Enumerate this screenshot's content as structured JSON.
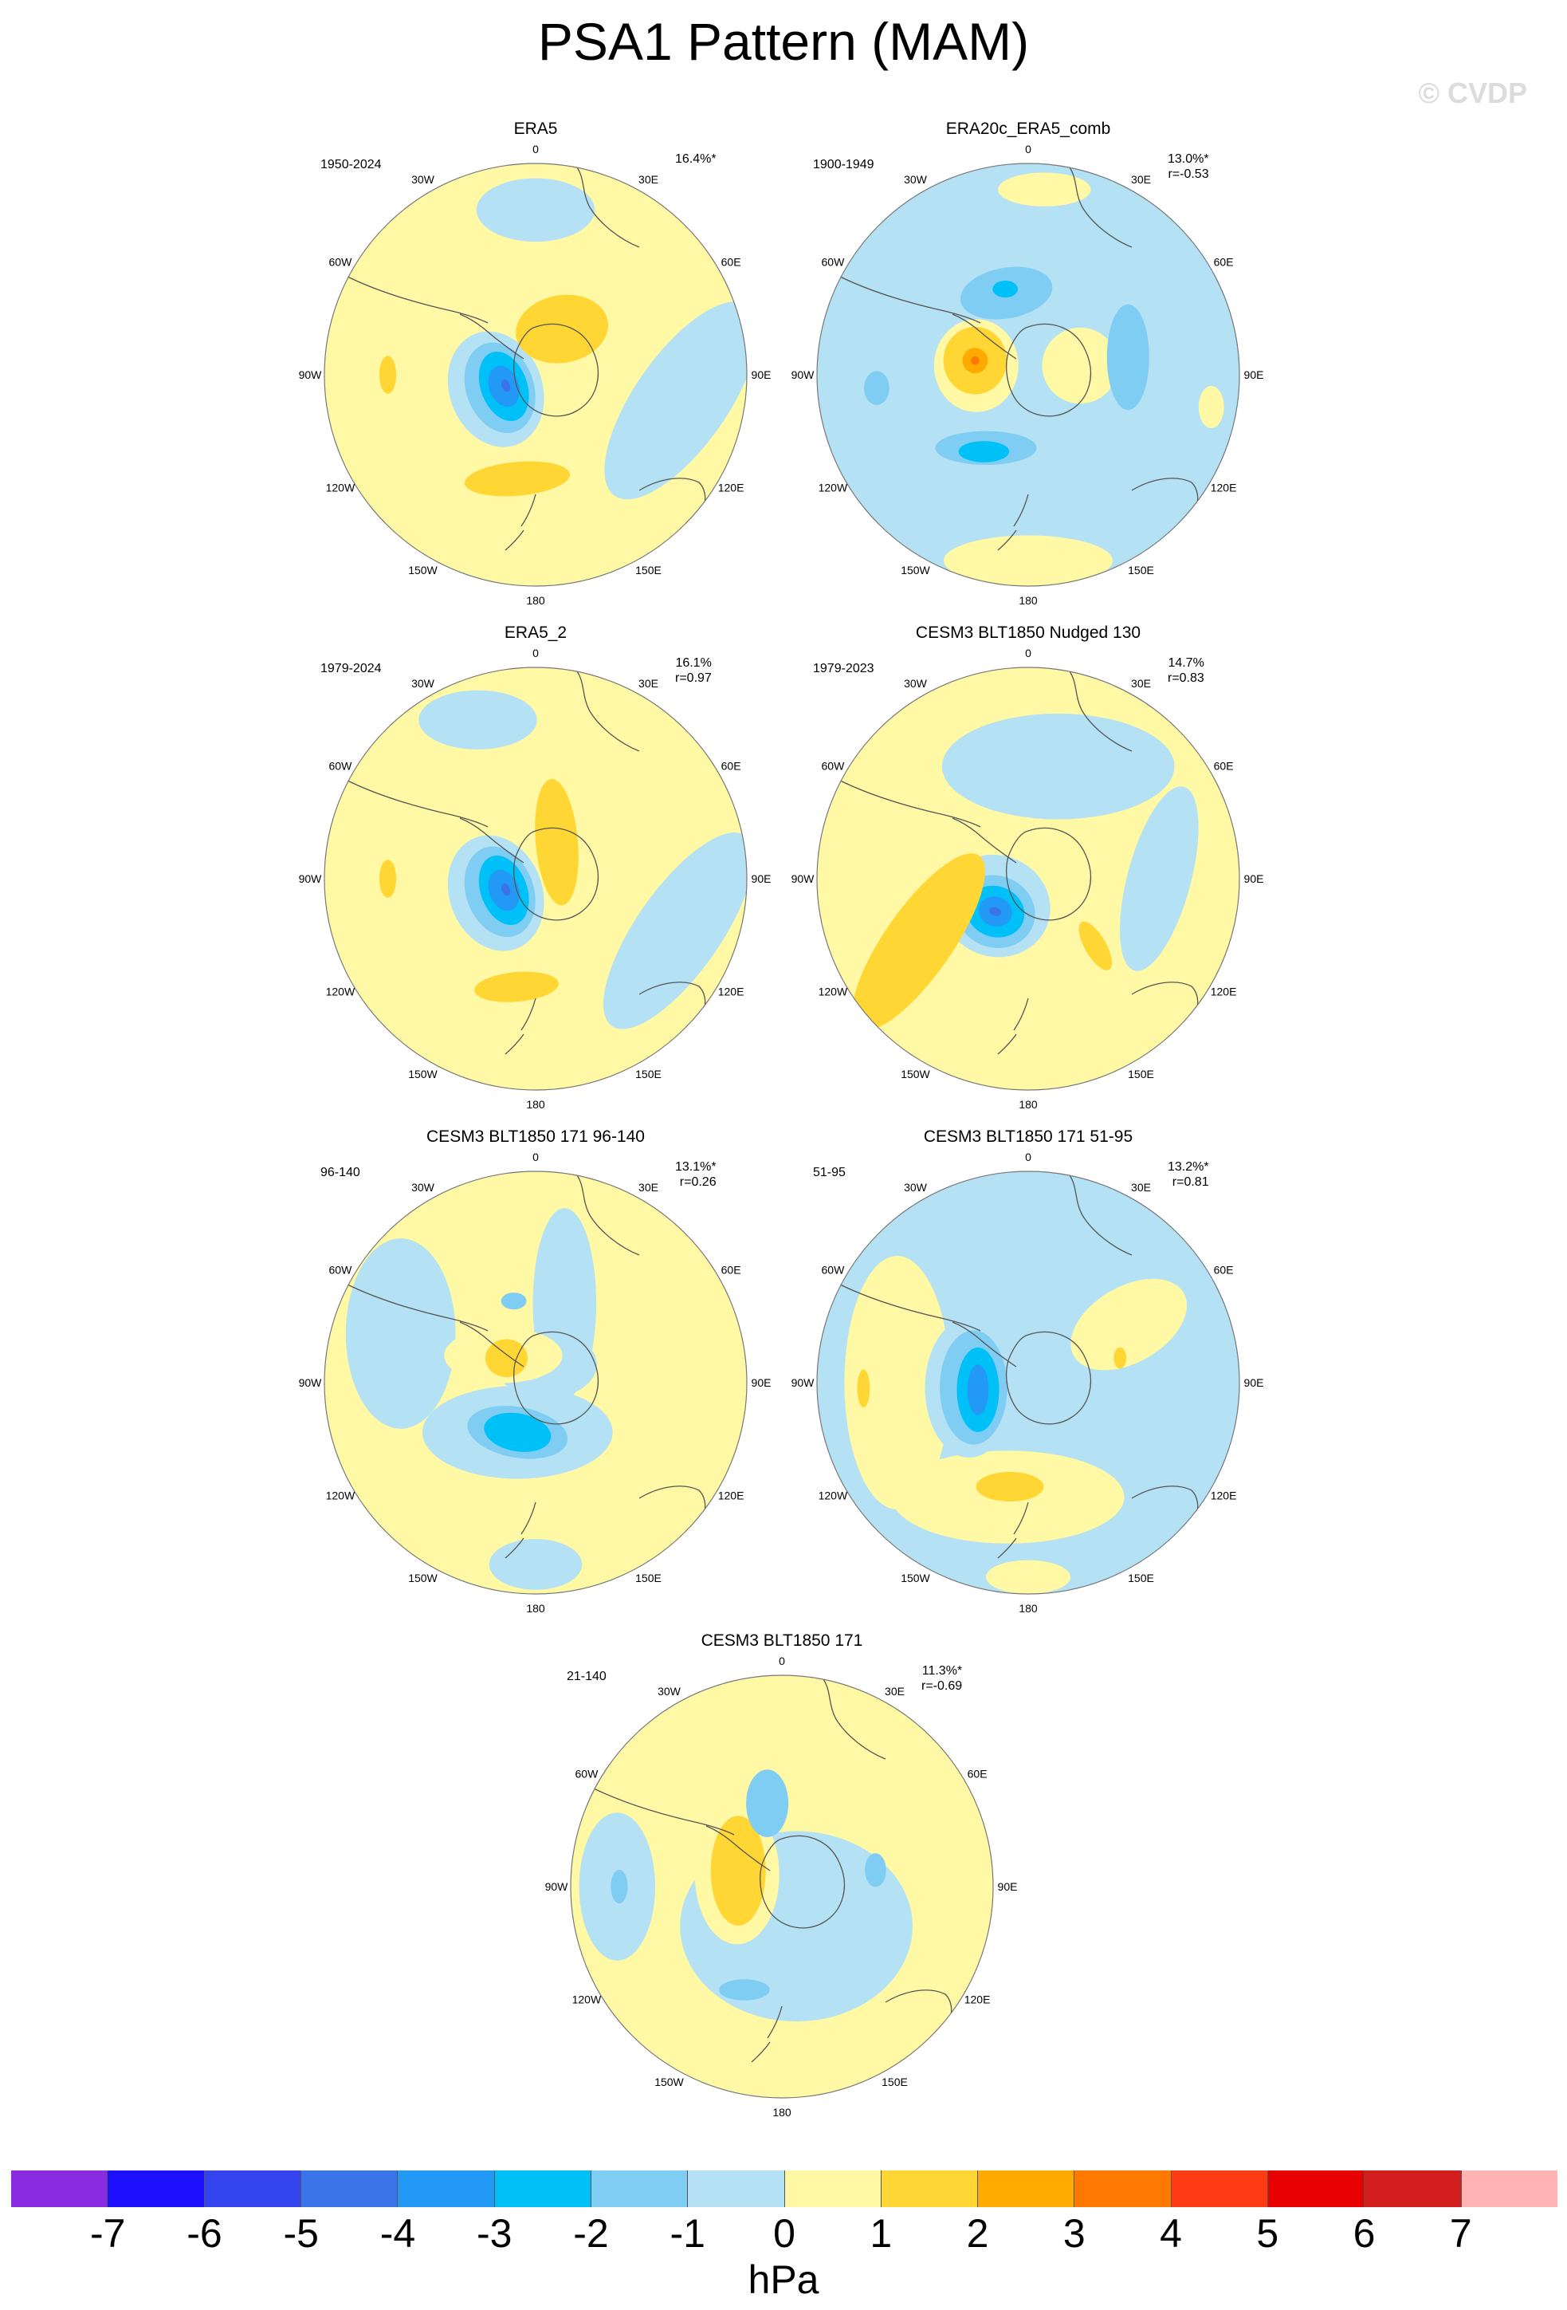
{
  "title": "PSA1 Pattern (MAM)",
  "watermark": "© CVDP",
  "longitude_labels": [
    "0",
    "30E",
    "60E",
    "90E",
    "120E",
    "150E",
    "180",
    "150W",
    "120W",
    "90W",
    "60W",
    "30W"
  ],
  "panels": [
    {
      "title": "ERA5",
      "years": "1950-2024",
      "stats": "16.4%*",
      "background": "yellow",
      "features": [
        {
          "level": -1,
          "lon": 250,
          "r": 0.2,
          "rx": 0.22,
          "ry": 0.28,
          "rot": -20
        },
        {
          "level": -2,
          "lon": 250,
          "r": 0.18,
          "rx": 0.16,
          "ry": 0.22,
          "rot": -20
        },
        {
          "level": -3,
          "lon": 250,
          "r": 0.16,
          "rx": 0.11,
          "ry": 0.17,
          "rot": -20
        },
        {
          "level": -4,
          "lon": 250,
          "r": 0.16,
          "rx": 0.07,
          "ry": 0.1,
          "rot": -20
        },
        {
          "level": -5,
          "lon": 250,
          "r": 0.15,
          "rx": 0.02,
          "ry": 0.03,
          "rot": -20
        },
        {
          "level": -1,
          "lon": 100,
          "r": 0.7,
          "rx": 0.22,
          "ry": 0.55,
          "rot": 35
        },
        {
          "level": -1,
          "lon": 0,
          "r": 0.78,
          "rx": 0.28,
          "ry": 0.15,
          "rot": 0
        },
        {
          "level": 2,
          "lon": 30,
          "r": 0.25,
          "rx": 0.22,
          "ry": 0.16,
          "rot": -10
        },
        {
          "level": 2,
          "lon": 190,
          "r": 0.5,
          "rx": 0.25,
          "ry": 0.08,
          "rot": -5
        },
        {
          "level": 2,
          "lon": 270,
          "r": 0.7,
          "rx": 0.04,
          "ry": 0.09,
          "rot": 0
        }
      ]
    },
    {
      "title": "ERA20c_ERA5_comb",
      "years": "1900-1949",
      "stats": "13.0%*\nr=-0.53",
      "background": "blue",
      "features": [
        {
          "level": 0,
          "lon": 280,
          "r": 0.25,
          "rx": 0.2,
          "ry": 0.22,
          "rot": 0
        },
        {
          "level": 1,
          "lon": 285,
          "r": 0.26,
          "rx": 0.15,
          "ry": 0.16,
          "rot": 0
        },
        {
          "level": 2,
          "lon": 285,
          "r": 0.26,
          "rx": 0.11,
          "ry": 0.12,
          "rot": 0
        },
        {
          "level": 3,
          "lon": 285,
          "r": 0.26,
          "rx": 0.06,
          "ry": 0.06,
          "rot": 0
        },
        {
          "level": 4,
          "lon": 285,
          "r": 0.26,
          "rx": 0.02,
          "ry": 0.02,
          "rot": 0
        },
        {
          "level": 0,
          "lon": 80,
          "r": 0.25,
          "rx": 0.18,
          "ry": 0.18,
          "rot": 0
        },
        {
          "level": -2,
          "lon": 345,
          "r": 0.4,
          "rx": 0.22,
          "ry": 0.12,
          "rot": -10
        },
        {
          "level": -3,
          "lon": 345,
          "r": 0.42,
          "rx": 0.06,
          "ry": 0.04,
          "rot": 0
        },
        {
          "level": -2,
          "lon": 80,
          "r": 0.48,
          "rx": 0.1,
          "ry": 0.25,
          "rot": 0
        },
        {
          "level": -2,
          "lon": 210,
          "r": 0.4,
          "rx": 0.24,
          "ry": 0.08,
          "rot": 0
        },
        {
          "level": -3,
          "lon": 210,
          "r": 0.42,
          "rx": 0.12,
          "ry": 0.05,
          "rot": 0
        },
        {
          "level": -2,
          "lon": 265,
          "r": 0.72,
          "rx": 0.06,
          "ry": 0.08,
          "rot": 0
        },
        {
          "level": 0,
          "lon": 180,
          "r": 0.88,
          "rx": 0.4,
          "ry": 0.12,
          "rot": 0
        },
        {
          "level": 0,
          "lon": 5,
          "r": 0.88,
          "rx": 0.22,
          "ry": 0.08,
          "rot": 0
        },
        {
          "level": 0,
          "lon": 100,
          "r": 0.88,
          "rx": 0.06,
          "ry": 0.1,
          "rot": 0
        }
      ]
    },
    {
      "title": "ERA5_2",
      "years": "1979-2024",
      "stats": "16.1%\nr=0.97",
      "background": "yellow",
      "features": [
        {
          "level": -1,
          "lon": 250,
          "r": 0.2,
          "rx": 0.22,
          "ry": 0.28,
          "rot": -20
        },
        {
          "level": -2,
          "lon": 250,
          "r": 0.18,
          "rx": 0.16,
          "ry": 0.22,
          "rot": -20
        },
        {
          "level": -3,
          "lon": 250,
          "r": 0.16,
          "rx": 0.11,
          "ry": 0.17,
          "rot": -20
        },
        {
          "level": -4,
          "lon": 250,
          "r": 0.16,
          "rx": 0.07,
          "ry": 0.1,
          "rot": -20
        },
        {
          "level": -5,
          "lon": 250,
          "r": 0.15,
          "rx": 0.02,
          "ry": 0.03,
          "rot": -20
        },
        {
          "level": -1,
          "lon": 110,
          "r": 0.72,
          "rx": 0.2,
          "ry": 0.55,
          "rot": 35
        },
        {
          "level": -1,
          "lon": 340,
          "r": 0.8,
          "rx": 0.28,
          "ry": 0.14,
          "rot": 0
        },
        {
          "level": 2,
          "lon": 30,
          "r": 0.2,
          "rx": 0.1,
          "ry": 0.3,
          "rot": -5
        },
        {
          "level": 2,
          "lon": 190,
          "r": 0.52,
          "rx": 0.2,
          "ry": 0.07,
          "rot": -5
        },
        {
          "level": 2,
          "lon": 270,
          "r": 0.7,
          "rx": 0.04,
          "ry": 0.09,
          "rot": 0
        }
      ]
    },
    {
      "title": "CESM3 BLT1850 Nudged 130",
      "years": "1979-2023",
      "stats": "14.7%\nr=0.83",
      "background": "yellow",
      "features": [
        {
          "level": -1,
          "lon": 230,
          "r": 0.2,
          "rx": 0.26,
          "ry": 0.24,
          "rot": 20
        },
        {
          "level": -2,
          "lon": 225,
          "r": 0.22,
          "rx": 0.19,
          "ry": 0.17,
          "rot": 20
        },
        {
          "level": -3,
          "lon": 225,
          "r": 0.22,
          "rx": 0.14,
          "ry": 0.12,
          "rot": 20
        },
        {
          "level": -4,
          "lon": 225,
          "r": 0.22,
          "rx": 0.08,
          "ry": 0.07,
          "rot": 20
        },
        {
          "level": -5,
          "lon": 225,
          "r": 0.22,
          "rx": 0.03,
          "ry": 0.02,
          "rot": 20
        },
        {
          "level": -1,
          "lon": 15,
          "r": 0.55,
          "rx": 0.55,
          "ry": 0.25,
          "rot": 0
        },
        {
          "level": -1,
          "lon": 90,
          "r": 0.62,
          "rx": 0.15,
          "ry": 0.45,
          "rot": 15
        },
        {
          "level": 2,
          "lon": 240,
          "r": 0.6,
          "rx": 0.16,
          "ry": 0.5,
          "rot": 35
        },
        {
          "level": 2,
          "lon": 135,
          "r": 0.45,
          "rx": 0.05,
          "ry": 0.13,
          "rot": -30
        }
      ]
    },
    {
      "title": "CESM3 BLT1850 171 96-140",
      "years": "96-140",
      "stats": "13.1%*\nr=0.26",
      "background": "yellow",
      "features": [
        {
          "level": -1,
          "lon": 290,
          "r": 0.68,
          "rx": 0.26,
          "ry": 0.45,
          "rot": 0
        },
        {
          "level": -1,
          "lon": 200,
          "r": 0.25,
          "rx": 0.45,
          "ry": 0.22,
          "rot": 0
        },
        {
          "level": -1,
          "lon": 20,
          "r": 0.4,
          "rx": 0.15,
          "ry": 0.45,
          "rot": 0
        },
        {
          "level": -1,
          "lon": 30,
          "r": 0.1,
          "rx": 0.24,
          "ry": 0.16,
          "rot": 0
        },
        {
          "level": -2,
          "lon": 200,
          "r": 0.25,
          "rx": 0.24,
          "ry": 0.12,
          "rot": 10
        },
        {
          "level": -3,
          "lon": 200,
          "r": 0.25,
          "rx": 0.16,
          "ry": 0.09,
          "rot": 10
        },
        {
          "level": 0,
          "lon": 310,
          "r": 0.2,
          "rx": 0.28,
          "ry": 0.13,
          "rot": 0
        },
        {
          "level": 1,
          "lon": 310,
          "r": 0.18,
          "rx": 0.1,
          "ry": 0.09,
          "rot": 0
        },
        {
          "level": 2,
          "lon": 300,
          "r": 0.18,
          "rx": 0.04,
          "ry": 0.05,
          "rot": 0
        },
        {
          "level": -2,
          "lon": 345,
          "r": 0.4,
          "rx": 0.06,
          "ry": 0.04,
          "rot": 0
        },
        {
          "level": -1,
          "lon": 180,
          "r": 0.86,
          "rx": 0.22,
          "ry": 0.12,
          "rot": 0
        }
      ]
    },
    {
      "title": "CESM3 BLT1850 171 51-95",
      "years": "51-95",
      "stats": "13.2%*\nr=0.81",
      "background": "blue",
      "features": [
        {
          "level": 0,
          "lon": 270,
          "r": 0.62,
          "rx": 0.25,
          "ry": 0.6,
          "rot": 0
        },
        {
          "level": 0,
          "lon": 60,
          "r": 0.55,
          "rx": 0.3,
          "ry": 0.18,
          "rot": -30
        },
        {
          "level": 0,
          "lon": 190,
          "r": 0.55,
          "rx": 0.55,
          "ry": 0.22,
          "rot": 0
        },
        {
          "level": 0,
          "lon": 180,
          "r": 0.92,
          "rx": 0.2,
          "ry": 0.08,
          "rot": 0
        },
        {
          "level": -1,
          "lon": 265,
          "r": 0.28,
          "rx": 0.21,
          "ry": 0.33,
          "rot": 0
        },
        {
          "level": -2,
          "lon": 265,
          "r": 0.26,
          "rx": 0.16,
          "ry": 0.27,
          "rot": 0
        },
        {
          "level": -3,
          "lon": 262,
          "r": 0.24,
          "rx": 0.1,
          "ry": 0.2,
          "rot": 0
        },
        {
          "level": -4,
          "lon": 262,
          "r": 0.24,
          "rx": 0.05,
          "ry": 0.12,
          "rot": 0
        },
        {
          "level": 2,
          "lon": 190,
          "r": 0.5,
          "rx": 0.16,
          "ry": 0.07,
          "rot": 0
        },
        {
          "level": 2,
          "lon": 75,
          "r": 0.45,
          "rx": 0.03,
          "ry": 0.05,
          "rot": 0
        },
        {
          "level": 2,
          "lon": 268,
          "r": 0.78,
          "rx": 0.03,
          "ry": 0.09,
          "rot": 0
        }
      ]
    },
    {
      "title": "CESM3 BLT1850 171",
      "years": "21-140",
      "stats": "11.3%*\nr=-0.69",
      "background": "yellow",
      "features": [
        {
          "level": -1,
          "lon": 160,
          "r": 0.2,
          "rx": 0.55,
          "ry": 0.45,
          "rot": 0
        },
        {
          "level": -1,
          "lon": 270,
          "r": 0.78,
          "rx": 0.18,
          "ry": 0.35,
          "rot": 0
        },
        {
          "level": 0,
          "lon": 285,
          "r": 0.22,
          "rx": 0.2,
          "ry": 0.33,
          "rot": 0
        },
        {
          "level": 1,
          "lon": 290,
          "r": 0.22,
          "rx": 0.13,
          "ry": 0.26,
          "rot": 0
        },
        {
          "level": 2,
          "lon": 292,
          "r": 0.24,
          "rx": 0.08,
          "ry": 0.17,
          "rot": 0
        },
        {
          "level": -2,
          "lon": 350,
          "r": 0.4,
          "rx": 0.1,
          "ry": 0.16,
          "rot": 0
        },
        {
          "level": -2,
          "lon": 80,
          "r": 0.45,
          "rx": 0.05,
          "ry": 0.08,
          "rot": 0
        },
        {
          "level": -2,
          "lon": 200,
          "r": 0.52,
          "rx": 0.12,
          "ry": 0.05,
          "rot": 0
        },
        {
          "level": -2,
          "lon": 270,
          "r": 0.77,
          "rx": 0.04,
          "ry": 0.08,
          "rot": 0
        }
      ]
    }
  ],
  "colorbar": {
    "colors": [
      "#8a2be2",
      "#1e10ff",
      "#3344ee",
      "#3a74e8",
      "#2299f5",
      "#00c0f8",
      "#80cdf3",
      "#b5e1f4",
      "#fff8a4",
      "#ffd633",
      "#ffaa00",
      "#ff7800",
      "#ff3c14",
      "#e60000",
      "#d21e1e",
      "#ffb3b3"
    ],
    "ticks": [
      "-7",
      "-6",
      "-5",
      "-4",
      "-3",
      "-2",
      "-1",
      "0",
      "1",
      "2",
      "3",
      "4",
      "5",
      "6",
      "7"
    ],
    "units": "hPa"
  },
  "level_colors": {
    "-5": "#3a74e8",
    "-4": "#2299f5",
    "-3": "#00c0f8",
    "-2": "#80cdf3",
    "-1": "#b5e1f4",
    "0": "#fff8a4",
    "1": "#ffd633",
    "2": "#ffd633",
    "3": "#ffaa00",
    "4": "#ff7800"
  }
}
